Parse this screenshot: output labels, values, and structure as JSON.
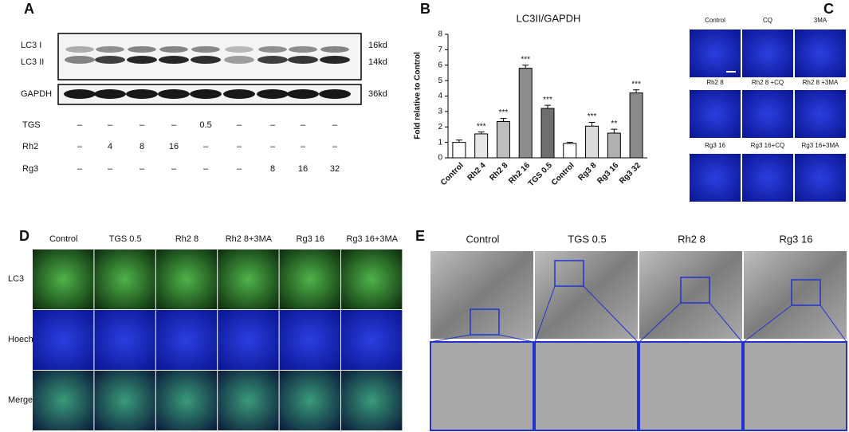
{
  "chart_data": {
    "type": "bar",
    "panel_label": "B",
    "title": "LC3II/GAPDH",
    "y_label": "Fold relative to Control",
    "categories": [
      "Control",
      "Rh2 4",
      "Rh2 8",
      "Rh2 16",
      "TGS 0.5",
      "Control",
      "Rg3 8",
      "Rg3 16",
      "Rg3 32"
    ],
    "values": [
      1.0,
      1.55,
      2.35,
      5.8,
      3.2,
      0.93,
      2.05,
      1.6,
      4.2
    ],
    "errors": [
      0.15,
      0.12,
      0.2,
      0.2,
      0.2,
      0.07,
      0.25,
      0.25,
      0.2
    ],
    "significance": [
      null,
      "***",
      "***",
      "***",
      "***",
      null,
      "***",
      "**",
      "***"
    ],
    "colors": [
      "#ffffff",
      "#e6e6e6",
      "#bdbdbd",
      "#8c8c8c",
      "#6e6e6e",
      "#ffffff",
      "#dcdcdc",
      "#b0b0b0",
      "#8a8a8a"
    ],
    "ylim": [
      0,
      8
    ],
    "yticks": [
      0,
      1,
      2,
      3,
      4,
      5,
      6,
      7,
      8
    ]
  },
  "panel_a": {
    "label": "A",
    "blot_labels": [
      "LC3 I",
      "LC3 II",
      "GAPDH"
    ],
    "sizes": [
      "16kd",
      "14kd",
      "36kd"
    ],
    "rows": [
      {
        "name": "TGS",
        "cells": [
          "–",
          "–",
          "–",
          "–",
          "0.5",
          "–",
          "–",
          "–",
          "–"
        ]
      },
      {
        "name": "Rh2",
        "cells": [
          "–",
          "4",
          "8",
          "16",
          "–",
          "–",
          "–",
          "–",
          "–"
        ]
      },
      {
        "name": "Rg3",
        "cells": [
          "–",
          "–",
          "–",
          "–",
          "–",
          "–",
          "8",
          "16",
          "32"
        ]
      }
    ]
  },
  "panel_c": {
    "label": "C",
    "cells": [
      [
        "Control",
        "CQ",
        "3MA"
      ],
      [
        "Rh2 8",
        "Rh2 8 +CQ",
        "Rh2 8 +3MA"
      ],
      [
        "Rg3 16",
        "Rg3 16+CQ",
        "Rg3 16+3MA"
      ]
    ]
  },
  "panel_d": {
    "label": "D",
    "columns": [
      "Control",
      "TGS 0.5",
      "Rh2 8",
      "Rh2 8+3MA",
      "Rg3 16",
      "Rg3 16+3MA"
    ],
    "rows": [
      "LC3",
      "Hoechst",
      "Merge"
    ]
  },
  "panel_e": {
    "label": "E",
    "columns": [
      "Control",
      "TGS 0.5",
      "Rh2 8",
      "Rg3 16"
    ]
  }
}
